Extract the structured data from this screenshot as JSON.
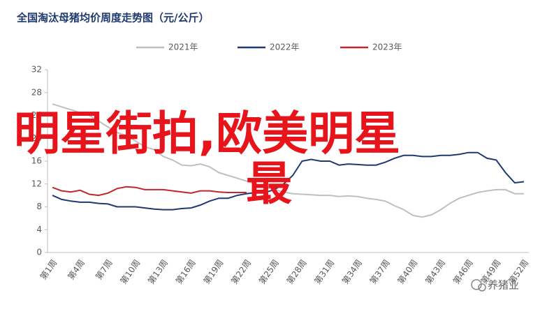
{
  "chart_data": {
    "type": "line",
    "title": "全国淘汰母猪均价周度走势图（元/公斤）",
    "categories": [
      "第1周",
      null,
      null,
      "第4周",
      null,
      null,
      "第7周",
      null,
      null,
      "第10周",
      null,
      null,
      "第13周",
      null,
      null,
      "第16周",
      null,
      null,
      "第19周",
      null,
      null,
      "第22周",
      null,
      null,
      "第25周",
      null,
      null,
      "第28周",
      null,
      null,
      "第31周",
      null,
      null,
      "第34周",
      null,
      null,
      "第37周",
      null,
      null,
      "第40周",
      null,
      null,
      "第43周",
      null,
      null,
      "第46周",
      null,
      null,
      "第49周",
      null,
      null,
      "第52周"
    ],
    "series": [
      {
        "name": "2021年",
        "color": "#bfbfbf",
        "values": [
          26,
          25.5,
          25,
          24.5,
          24,
          23,
          22,
          21,
          20.5,
          19.5,
          18.5,
          18,
          16.8,
          16.2,
          15.3,
          15.2,
          15.5,
          15,
          14,
          13.5,
          13,
          12.5,
          12,
          11.5,
          11,
          10.6,
          10.3,
          10.2,
          10.1,
          10,
          10,
          9.8,
          9.9,
          9.8,
          9.5,
          9.3,
          9,
          8.2,
          7.5,
          6.5,
          6.2,
          6.6,
          7.5,
          8.6,
          9.5,
          10,
          10.5,
          10.8,
          11,
          11,
          10.3,
          10.3
        ]
      },
      {
        "name": "2022年",
        "color": "#1f3a70",
        "values": [
          10,
          9.3,
          9,
          8.8,
          8.8,
          8.6,
          8.5,
          8,
          8,
          8,
          7.8,
          7.6,
          7.5,
          7.5,
          7.7,
          7.8,
          8.3,
          9,
          9.5,
          9.5,
          10,
          10.3,
          10.5,
          10.5,
          11,
          12,
          13.5,
          16,
          16.3,
          16,
          16,
          15.3,
          15.5,
          15.4,
          15.3,
          15.3,
          15.8,
          16.5,
          17,
          17,
          16.8,
          16.8,
          17,
          17,
          17.2,
          17.5,
          17.5,
          16.5,
          16.2,
          14,
          12.2,
          12.4
        ]
      },
      {
        "name": "2023年",
        "color": "#c0282d",
        "values": [
          11.4,
          10.8,
          10.6,
          10.9,
          10.2,
          10,
          10.4,
          11.2,
          11.5,
          11.4,
          11,
          11,
          11,
          10.8,
          10.6,
          10.4,
          10.8,
          10.8,
          10.6,
          10.5,
          10.5,
          10.5,
          null,
          null,
          null,
          null,
          null,
          null,
          null,
          null,
          null,
          null,
          null,
          null,
          null,
          null,
          null,
          null,
          null,
          null,
          null,
          null,
          null,
          null,
          null,
          null,
          null,
          null,
          null,
          null,
          null,
          null
        ]
      }
    ],
    "ylim": [
      0,
      32
    ],
    "yticks": [
      0,
      4,
      8,
      12,
      16,
      20,
      24,
      28,
      32
    ],
    "grid": false,
    "legend": "top"
  },
  "overlay_lines": [
    "明星街拍,欧美明星",
    "最"
  ],
  "watermark": "养猪业"
}
